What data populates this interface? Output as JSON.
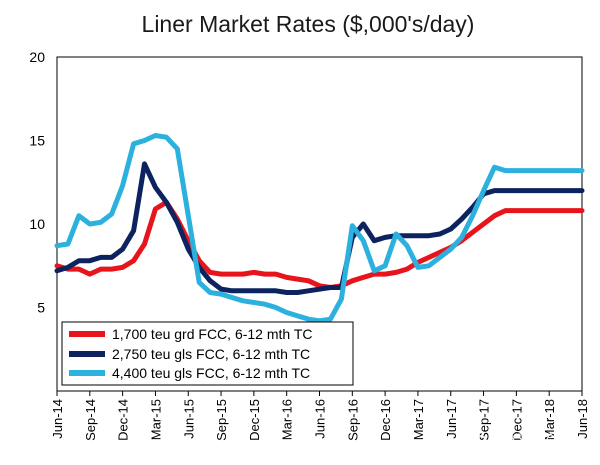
{
  "chart_data": {
    "type": "line",
    "title": "Liner Market Rates ($,000's/day)",
    "xlabel": "",
    "ylabel": "",
    "ylim": [
      0,
      20
    ],
    "yticks": [
      "5",
      "10",
      "15",
      "20"
    ],
    "x_tick_labels": [
      "Jun-14",
      "Sep-14",
      "Dec-14",
      "Mar-15",
      "Jun-15",
      "Sep-15",
      "Dec-15",
      "Mar-16",
      "Jun-16",
      "Sep-16",
      "Dec-16",
      "Mar-17",
      "Jun-17",
      "Sep-17",
      "Dec-17",
      "Mar-18",
      "Jun-18"
    ],
    "x_months": [
      0,
      1,
      2,
      3,
      4,
      5,
      6,
      7,
      8,
      9,
      10,
      11,
      12,
      13,
      14,
      15,
      16,
      17,
      18,
      19,
      20,
      21,
      22,
      23,
      24,
      25,
      26,
      27,
      28,
      29,
      30,
      31,
      32,
      33,
      34,
      35,
      36,
      37,
      38,
      39,
      40,
      41,
      42,
      43,
      44,
      45,
      46,
      47,
      48
    ],
    "series": [
      {
        "name": "1,700 teu grd FCC, 6-12 mth TC",
        "color": "#e8141c",
        "values": [
          7.5,
          7.3,
          7.3,
          7.0,
          7.3,
          7.3,
          7.4,
          7.8,
          8.8,
          10.9,
          11.3,
          10.3,
          9.0,
          7.8,
          7.1,
          7.0,
          7.0,
          7.0,
          7.1,
          7.0,
          7.0,
          6.8,
          6.7,
          6.6,
          6.3,
          6.2,
          6.3,
          6.6,
          6.8,
          7.0,
          7.0,
          7.1,
          7.3,
          7.7,
          8.0,
          8.3,
          8.6,
          9.0,
          9.5,
          10.0,
          10.5,
          10.8,
          10.8,
          10.8,
          10.8,
          10.8,
          10.8,
          10.8,
          10.8
        ]
      },
      {
        "name": "2,750 teu gls FCC, 6-12 mth TC",
        "color": "#0c2360",
        "values": [
          7.2,
          7.4,
          7.8,
          7.8,
          8.0,
          8.0,
          8.5,
          9.6,
          13.6,
          12.2,
          11.3,
          10.1,
          8.5,
          7.4,
          6.6,
          6.1,
          6.0,
          6.0,
          6.0,
          6.0,
          6.0,
          5.9,
          5.9,
          6.0,
          6.1,
          6.2,
          6.2,
          9.2,
          10.0,
          9.0,
          9.2,
          9.3,
          9.3,
          9.3,
          9.3,
          9.4,
          9.7,
          10.3,
          11.0,
          11.8,
          12.0,
          12.0,
          12.0,
          12.0,
          12.0,
          12.0,
          12.0,
          12.0,
          12.0
        ]
      },
      {
        "name": "4,400 teu gls FCC, 6-12 mth TC",
        "color": "#2cb1df",
        "values": [
          8.7,
          8.8,
          10.5,
          10.0,
          10.1,
          10.6,
          12.3,
          14.8,
          15.0,
          15.3,
          15.2,
          14.5,
          10.5,
          6.5,
          5.9,
          5.8,
          5.6,
          5.4,
          5.3,
          5.2,
          5.0,
          4.7,
          4.5,
          4.3,
          4.2,
          4.3,
          5.5,
          9.9,
          9.0,
          7.2,
          7.5,
          9.4,
          8.7,
          7.4,
          7.5,
          8.0,
          8.5,
          9.2,
          10.5,
          12.0,
          13.4,
          13.2,
          13.2,
          13.2,
          13.2,
          13.2,
          13.2,
          13.2,
          13.2
        ]
      }
    ],
    "legend_position": "bottom-left"
  },
  "watermark": {
    "icon": "wechat-icon",
    "text": "航运交易公报"
  }
}
